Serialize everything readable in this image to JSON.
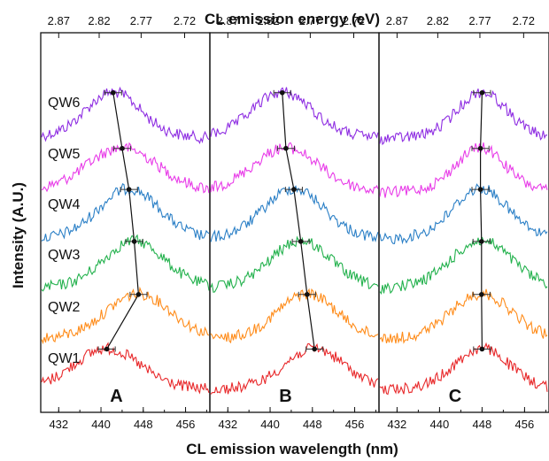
{
  "chart_data": {
    "type": "line",
    "top_axis_label": "CL emission energy (eV)",
    "bottom_axis_label": "CL emission wavelength (nm)",
    "y_axis_label": "Intensity (A.U.)",
    "top_ticks": [
      "2.87",
      "2.82",
      "2.77",
      "2.72"
    ],
    "bottom_ticks": [
      "432",
      "440",
      "448",
      "456"
    ],
    "x_range_nm": [
      428.6,
      460.6
    ],
    "wells": [
      {
        "label": "QW6",
        "color": "#8e2de2"
      },
      {
        "label": "QW5",
        "color": "#e83ce8"
      },
      {
        "label": "QW4",
        "color": "#2a7fc6"
      },
      {
        "label": "QW3",
        "color": "#22b14c"
      },
      {
        "label": "QW2",
        "color": "#ff8c1a"
      },
      {
        "label": "QW1",
        "color": "#e8282a"
      }
    ],
    "panels": [
      {
        "label": "A",
        "peaks_nm": [
          442.3,
          444.0,
          445.3,
          446.3,
          447.1,
          441.1
        ],
        "peak_error_nm": 1.6,
        "widths_nm": [
          5.0,
          6.5,
          5.5,
          5.5,
          6.0,
          6.0
        ]
      },
      {
        "label": "B",
        "peaks_nm": [
          442.3,
          443.0,
          444.5,
          445.8,
          447.0,
          448.4
        ],
        "peak_error_nm": 1.6,
        "widths_nm": [
          5.5,
          6.0,
          5.5,
          5.5,
          5.5,
          5.5
        ]
      },
      {
        "label": "C",
        "peaks_nm": [
          448.0,
          447.7,
          447.7,
          447.9,
          447.9,
          448.0
        ],
        "peak_error_nm": 1.6,
        "widths_nm": [
          4.5,
          4.5,
          5.0,
          5.5,
          5.5,
          5.0
        ]
      }
    ]
  }
}
